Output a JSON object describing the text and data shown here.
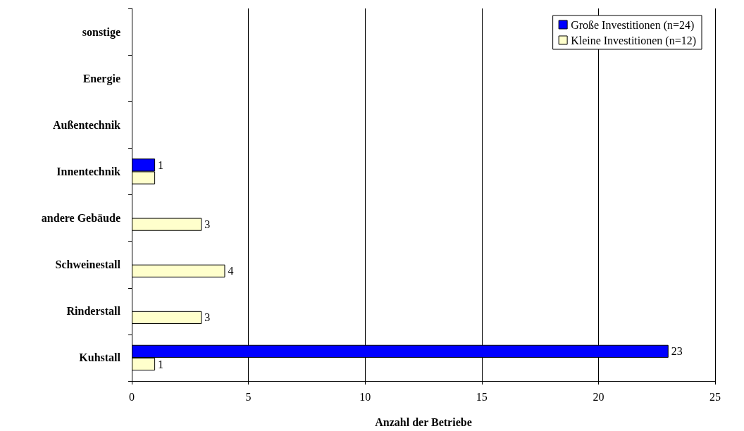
{
  "chart_data": {
    "type": "bar",
    "orientation": "horizontal",
    "xlabel": "Anzahl der Betriebe",
    "categories": [
      "sonstige",
      "Energie",
      "Außentechnik",
      "Innentechnik",
      "andere Gebäude",
      "Schweinestall",
      "Rinderstall",
      "Kuhstall"
    ],
    "series": [
      {
        "name": "Große Investitionen (n=24)",
        "color": "#0000ff",
        "values": [
          null,
          null,
          null,
          1,
          null,
          null,
          null,
          23
        ],
        "value_labels": [
          null,
          null,
          null,
          "1",
          null,
          null,
          null,
          "23"
        ]
      },
      {
        "name": "Kleine Investitionen (n=12)",
        "color": "#ffffcc",
        "values": [
          null,
          null,
          null,
          1,
          3,
          4,
          3,
          1
        ],
        "value_labels": [
          null,
          null,
          null,
          null,
          "3",
          "4",
          "3",
          "1"
        ]
      }
    ],
    "xlim": [
      0,
      25
    ],
    "xticks": [
      0,
      5,
      10,
      15,
      20,
      25
    ],
    "grid": "x",
    "legend": "top right"
  }
}
